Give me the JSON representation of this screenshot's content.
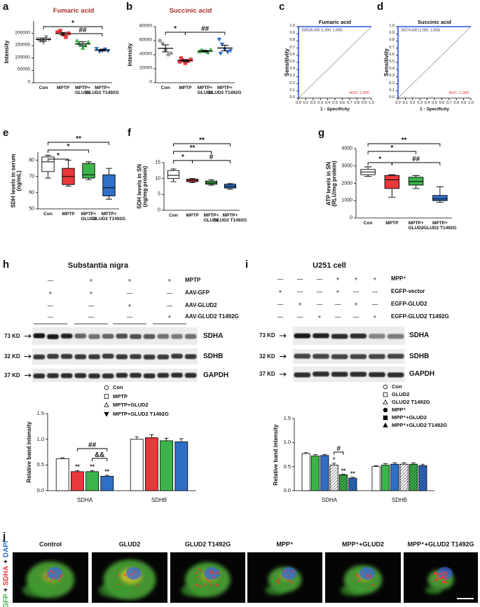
{
  "panel_letters": [
    "a",
    "b",
    "c",
    "d",
    "e",
    "f",
    "g",
    "h",
    "i",
    "j"
  ],
  "chart_data": [
    {
      "type": "dot",
      "title": "Fumaric acid",
      "y_label": "Intensity",
      "categories": [
        "Con",
        "MPTP",
        "MPTP+\nGLUD2",
        "MPTP+\nGLUD2 T1492G"
      ],
      "colors": [
        "#9a9a9a",
        "#e8393b",
        "#3cb44b",
        "#2f6fc6"
      ],
      "markers": [
        "triangle-down",
        "square",
        "triangle",
        "triangle-down"
      ],
      "points": [
        [
          178000,
          170000,
          163000,
          186000,
          176000,
          172000
        ],
        [
          205000,
          211000,
          196000,
          185000,
          200000
        ],
        [
          170000,
          155000,
          140000,
          150000,
          165000,
          161000
        ],
        [
          138000,
          127000,
          131000,
          136000,
          129000
        ]
      ],
      "values": [
        175000,
        199000,
        157000,
        132000
      ],
      "errors": [
        6000,
        5000,
        9000,
        3500
      ],
      "ylim": [
        0,
        250000
      ],
      "yticks": [
        0,
        50000,
        100000,
        150000,
        200000
      ],
      "annotations": [
        "*",
        "##"
      ]
    },
    {
      "type": "dot",
      "title": "Succinic acid",
      "y_label": "Intensity",
      "categories": [
        "Con",
        "MPTP",
        "MPTP+\nGLUD2",
        "MPTP+\nGLUD2 T1492G"
      ],
      "colors": [
        "#9a9a9a",
        "#e8393b",
        "#3cb44b",
        "#2f6fc6"
      ],
      "markers": [
        "circle",
        "square",
        "triangle",
        "triangle-down"
      ],
      "points": [
        [
          60000,
          56000,
          47000,
          40000,
          42000
        ],
        [
          30000,
          32000,
          28000,
          31000,
          33000,
          35000
        ],
        [
          44000,
          46000,
          45000,
          43000,
          47000,
          45500
        ],
        [
          62000,
          55000,
          48000,
          44000,
          46000,
          42000
        ]
      ],
      "values": [
        49000,
        31500,
        45000,
        49500
      ],
      "errors": [
        5000,
        1500,
        1000,
        4000
      ],
      "ylim": [
        0,
        80000
      ],
      "yticks": [
        0,
        20000,
        40000,
        60000,
        80000
      ],
      "annotations": [
        "*",
        "##"
      ]
    },
    {
      "type": "roc",
      "title": "Fumaric acid",
      "x_label": "1 - Specificity",
      "y_label": "Sensitivity",
      "x": [
        0,
        0,
        1
      ],
      "values": [
        0,
        1,
        1
      ],
      "color": "#2d4fd6",
      "point_label": "100535.000 (1.000, 1.000)",
      "auc_label": "AUC: 1.000",
      "xlim": [
        0,
        1
      ],
      "ylim": [
        0,
        1
      ],
      "xticks": [
        {
          "value": 0,
          "label": "0.0"
        },
        0.1,
        0.2,
        0.3,
        0.4,
        0.5,
        0.6,
        0.7,
        0.8,
        0.9,
        {
          "value": 1,
          "label": "1.0"
        }
      ],
      "yticks": [
        {
          "value": 0,
          "label": "0.0"
        },
        0.1,
        0.2,
        0.3,
        0.4,
        0.5,
        0.6,
        0.7,
        0.8,
        0.9,
        {
          "value": 1,
          "label": "1.0"
        }
      ]
    },
    {
      "type": "roc",
      "title": "Succinic acid",
      "x_label": "1 - Specificity",
      "y_label": "Sensitivity",
      "x": [
        0,
        0,
        1
      ],
      "values": [
        0,
        1,
        1
      ],
      "color": "#2d4fd6",
      "point_label": "39274.500 (1.000, 1.000)",
      "auc_label": "AUC: 1.000",
      "xlim": [
        0,
        1
      ],
      "ylim": [
        0,
        1
      ],
      "xticks": [
        {
          "value": 0,
          "label": "0.0"
        },
        0.1,
        0.2,
        0.3,
        0.4,
        0.5,
        0.6,
        0.7,
        0.8,
        0.9,
        {
          "value": 1,
          "label": "1.0"
        }
      ],
      "yticks": [
        {
          "value": 0,
          "label": "0.0"
        },
        0.1,
        0.2,
        0.3,
        0.4,
        0.5,
        0.6,
        0.7,
        0.8,
        0.9,
        {
          "value": 1,
          "label": "1.0"
        }
      ]
    },
    {
      "type": "box",
      "y_label": "SDH levels in serum\n(ng/mL)",
      "categories": [
        "Con",
        "MPTP",
        "MPTP+\nGLUD2",
        "MPTP+\nGLUD2 T1492G"
      ],
      "colors": [
        "#ffffff",
        "#e8393b",
        "#3cb44b",
        "#2f6fc6"
      ],
      "boxes": [
        {
          "min": 69,
          "q1": 73,
          "median": 79,
          "q3": 82,
          "max": 83
        },
        {
          "min": 64,
          "q1": 65,
          "median": 70,
          "q3": 75,
          "max": 80
        },
        {
          "min": 68,
          "q1": 69,
          "median": 71,
          "q3": 78,
          "max": 79
        },
        {
          "min": 56,
          "q1": 58,
          "median": 63,
          "q3": 71,
          "max": 75
        }
      ],
      "ylim": [
        50,
        85
      ],
      "yticks": [
        50,
        60,
        70,
        80
      ],
      "annotations": [
        "**",
        "*",
        "*"
      ]
    },
    {
      "type": "box",
      "y_label": "SDH levels in SN\n(ng/mg protein)",
      "categories": [
        "Con",
        "MPTP",
        "MPTP+\nGLUD2",
        "MPTP+\nGLUD2 T1492G"
      ],
      "colors": [
        "#ffffff",
        "#e8393b",
        "#3cb44b",
        "#2f6fc6"
      ],
      "boxes": [
        {
          "min": 9,
          "q1": 10,
          "median": 11,
          "q3": 12.5,
          "max": 13
        },
        {
          "min": 8.7,
          "q1": 9,
          "median": 9.4,
          "q3": 9.8,
          "max": 10
        },
        {
          "min": 7.9,
          "q1": 8.2,
          "median": 8.6,
          "q3": 9.2,
          "max": 9.6
        },
        {
          "min": 6.6,
          "q1": 7,
          "median": 7.5,
          "q3": 8.2,
          "max": 8.4
        }
      ],
      "ylim": [
        0,
        15
      ],
      "yticks": [
        0,
        5,
        10,
        15
      ],
      "annotations": [
        "**",
        "**",
        "*",
        "#"
      ]
    },
    {
      "type": "box",
      "y_label": "ATP levels in SN\n(RLU/mg protein)",
      "categories": [
        "Con",
        "MPTP",
        "MPTP+\nGLUD2",
        "MPTP+\nGLUD2 T1492G"
      ],
      "colors": [
        "#ffffff",
        "#e8393b",
        "#3cb44b",
        "#2f6fc6"
      ],
      "boxes": [
        {
          "min": 2400,
          "q1": 2500,
          "median": 2650,
          "q3": 2800,
          "max": 2950
        },
        {
          "min": 1200,
          "q1": 1700,
          "median": 2200,
          "q3": 2450,
          "max": 2500
        },
        {
          "min": 1700,
          "q1": 1900,
          "median": 2100,
          "q3": 2350,
          "max": 2450
        },
        {
          "min": 900,
          "q1": 1000,
          "median": 1100,
          "q3": 1300,
          "max": 1800
        }
      ],
      "ylim": [
        0,
        4000
      ],
      "yticks": [
        0,
        1000,
        2000,
        3000,
        4000
      ],
      "annotations": [
        "**",
        "*",
        "*",
        "##"
      ]
    },
    {
      "type": "bar",
      "y_label": "Relative band intensity",
      "categories": [
        "SDHA",
        "SDHB"
      ],
      "series": [
        {
          "name": "Con",
          "color": "#ffffff",
          "marker": "circle",
          "values": [
            0.62,
            1.0
          ],
          "errors": [
            0.02,
            0.05
          ]
        },
        {
          "name": "MPTP",
          "color": "#e8393b",
          "marker": "square",
          "values": [
            0.37,
            1.03
          ],
          "errors": [
            0.02,
            0.06
          ]
        },
        {
          "name": "MPTP+GLUD2",
          "color": "#3cb44b",
          "marker": "triangle",
          "values": [
            0.37,
            0.97
          ],
          "errors": [
            0.02,
            0.05
          ]
        },
        {
          "name": "MPTP+GLUD2 T1492G",
          "color": "#2f6fc6",
          "marker": "triangle-down-filled",
          "values": [
            0.28,
            0.95
          ],
          "errors": [
            0.02,
            0.06
          ]
        }
      ],
      "ylim": [
        0,
        1.5
      ],
      "yticks": [
        {
          "value": 0,
          "label": "0.0"
        },
        0.5,
        {
          "value": 1,
          "label": "1.0"
        },
        1.5
      ],
      "annotations": [
        "**",
        "**",
        "**",
        "##",
        "&&"
      ]
    },
    {
      "type": "bar",
      "y_label": "Relative band intensity",
      "categories": [
        "SDHA",
        "SDHB"
      ],
      "series": [
        {
          "name": "Con",
          "color": "#ffffff",
          "marker": "circle",
          "values": [
            0.77,
            0.5
          ],
          "errors": [
            0.02,
            0.02
          ]
        },
        {
          "name": "GLUD2",
          "color": "#3cb44b",
          "marker": "square",
          "values": [
            0.72,
            0.53
          ],
          "errors": [
            0.03,
            0.03
          ]
        },
        {
          "name": "GLUD2 T1492G",
          "color": "#2f6fc6",
          "marker": "triangle",
          "values": [
            0.73,
            0.55
          ],
          "errors": [
            0.02,
            0.03
          ]
        },
        {
          "name": "MPP⁺",
          "color": "#ffffff",
          "hatch": true,
          "marker": "circle-filled",
          "values": [
            0.53,
            0.55
          ],
          "errors": [
            0.04,
            0.03
          ]
        },
        {
          "name": "MPP⁺+GLUD2",
          "color": "#3cb44b",
          "hatch": true,
          "marker": "square-filled",
          "values": [
            0.33,
            0.55
          ],
          "errors": [
            0.01,
            0.03
          ]
        },
        {
          "name": "MPP⁺+GLUD2 T1492G",
          "color": "#2f6fc6",
          "hatch": true,
          "marker": "triangle-filled",
          "values": [
            0.26,
            0.52
          ],
          "errors": [
            0.02,
            0.03
          ]
        }
      ],
      "ylim": [
        0,
        1.5
      ],
      "yticks": [
        {
          "value": 0,
          "label": "0.0"
        },
        0.5,
        {
          "value": 1,
          "label": "1.0"
        },
        1.5
      ],
      "annotations": [
        "*",
        "**",
        "**",
        "#"
      ]
    }
  ],
  "blots": [
    {
      "title": "Substantia nigra",
      "treatments": [
        {
          "label": "MPTP",
          "marks": [
            "—",
            "+",
            "+",
            "+"
          ]
        },
        {
          "label": "AAV-GFP",
          "marks": [
            "+",
            "+",
            "—",
            "—"
          ]
        },
        {
          "label": "AAV-GLUD2",
          "marks": [
            "—",
            "—",
            "+",
            "—"
          ]
        },
        {
          "label": "AAV-GLUD2 T1492G",
          "marks": [
            "—",
            "—",
            "—",
            "+"
          ]
        }
      ],
      "bands": [
        {
          "size": "73 KD",
          "protein": "SDHA"
        },
        {
          "size": "32 KD",
          "protein": "SDHB"
        },
        {
          "size": "37 KD",
          "protein": "GAPDH"
        }
      ]
    },
    {
      "title": "U251 cell",
      "treatments": [
        {
          "label": "MPP⁺",
          "marks": [
            "—",
            "—",
            "—",
            "+",
            "+",
            "+"
          ]
        },
        {
          "label": "EGFP-vector",
          "marks": [
            "+",
            "—",
            "—",
            "+",
            "—",
            "—"
          ]
        },
        {
          "label": "EGFP-GLUD2",
          "marks": [
            "—",
            "+",
            "—",
            "—",
            "+",
            "—"
          ]
        },
        {
          "label": "EGFP-GLUD2 T1492G",
          "marks": [
            "—",
            "—",
            "+",
            "—",
            "—",
            "+"
          ]
        }
      ],
      "bands": [
        {
          "size": "73 KD",
          "protein": "SDHA"
        },
        {
          "size": "32 KD",
          "protein": "SDHB"
        },
        {
          "size": "37 KD",
          "protein": "GAPDH"
        }
      ]
    }
  ],
  "micrographs": {
    "stain": [
      "EGFP",
      "+",
      "SDHA",
      "+",
      "DAPI"
    ],
    "labels": [
      "Control",
      "GLUD2",
      "GLUD2 T1492G",
      "MPP⁺",
      "MPP⁺+GLUD2",
      "MPP⁺+GLUD2 T1492G"
    ]
  }
}
